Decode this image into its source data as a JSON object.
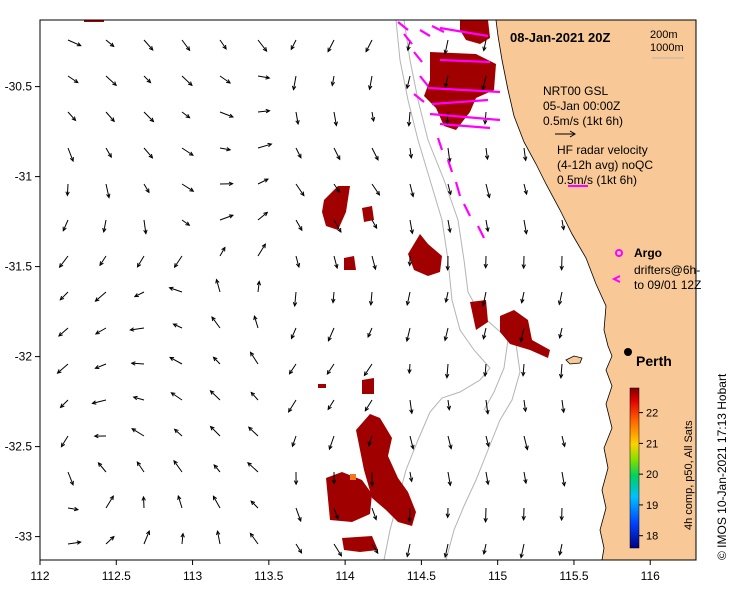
{
  "map": {
    "date_title": "08-Jan-2021 20Z",
    "x_ticks": [
      "112",
      "112.5",
      "113",
      "113.5",
      "114",
      "114.5",
      "115",
      "115.5",
      "116"
    ],
    "y_ticks": [
      "-30.5",
      "-31",
      "-31.5",
      "-32",
      "-32.5",
      "-33"
    ],
    "x_range": [
      112,
      116.3
    ],
    "y_range": [
      -30.13,
      -33.13
    ]
  },
  "legend": {
    "isobath_200": "200m",
    "isobath_1000": "1000m",
    "model_title": "NRT00 GSL",
    "model_date": "05-Jan 00:00Z",
    "model_scale": "0.5m/s (1kt 6h)",
    "radar_line1": "HF radar velocity",
    "radar_line2": "(4-12h avg) noQC",
    "radar_scale": "0.5m/s (1kt 6h)",
    "argo_label": "Argo",
    "drifters_line1": "drifters@6h-",
    "drifters_line2": "to 09/01 12Z",
    "city": "Perth"
  },
  "colorbar": {
    "ticks": [
      "22",
      "21",
      "20",
      "19",
      "18"
    ],
    "label": "4h comp, p50, All Sats"
  },
  "credit": "© IMOS 10-Jan-2021 17:13 Hobart",
  "colors": {
    "land": "#f8c896",
    "sst_patch": "#a00000",
    "radar": "#ff00ff",
    "arrow": "#000000",
    "isobath": "#b4b4b4"
  }
}
